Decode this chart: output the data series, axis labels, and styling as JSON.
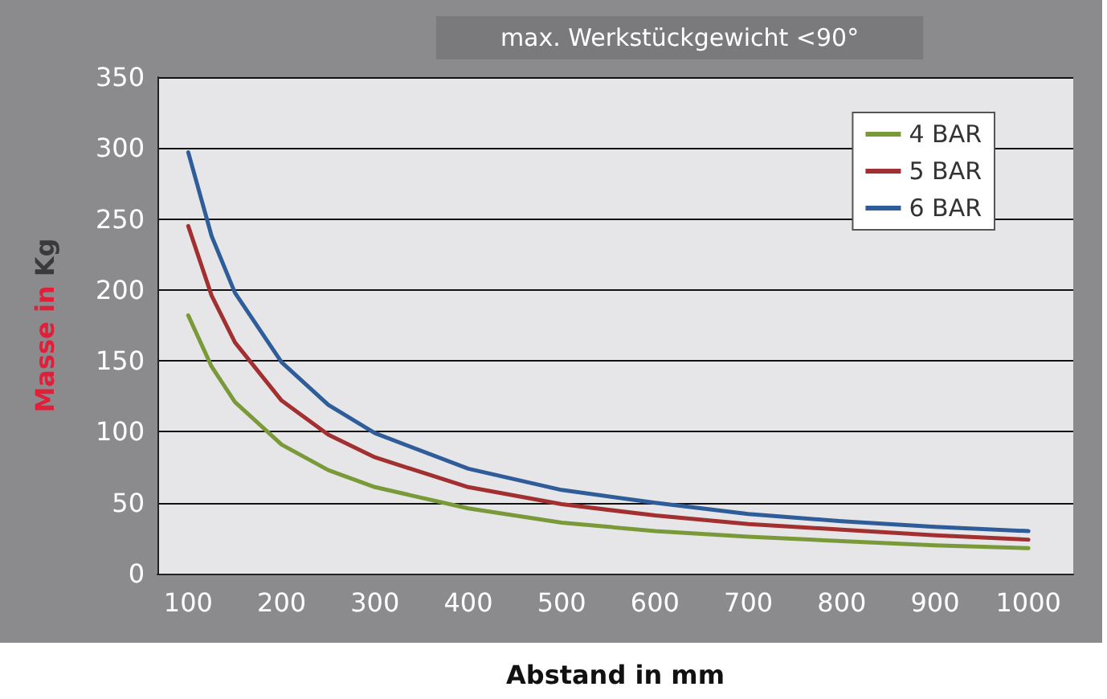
{
  "chart_data": {
    "type": "line",
    "title": "max. Werkstückgewicht <90°",
    "xlabel": "Abstand in mm",
    "ylabel": "Masse in Kg",
    "x": [
      100,
      125,
      150,
      200,
      250,
      300,
      400,
      500,
      600,
      700,
      800,
      900,
      1000
    ],
    "series": [
      {
        "name": "4 BAR",
        "color": "#7a9a3a",
        "values": [
          182,
          146,
          121,
          91,
          73,
          61,
          46,
          36,
          30,
          26,
          23,
          20,
          18
        ]
      },
      {
        "name": "5 BAR",
        "color": "#a23030",
        "values": [
          245,
          196,
          163,
          122,
          98,
          82,
          61,
          49,
          41,
          35,
          31,
          27,
          24
        ]
      },
      {
        "name": "6 BAR",
        "color": "#2f5d9a",
        "values": [
          297,
          238,
          198,
          149,
          119,
          99,
          74,
          59,
          50,
          42,
          37,
          33,
          30
        ]
      }
    ],
    "xlim": [
      67,
      1048
    ],
    "xticks": [
      100,
      200,
      300,
      400,
      500,
      600,
      700,
      800,
      900,
      1000
    ],
    "ylim": [
      0,
      350
    ],
    "yticks": [
      0,
      50,
      100,
      150,
      200,
      250,
      300,
      350
    ],
    "grid": "y",
    "legend": "top right",
    "marker": "none",
    "line_style": "solid"
  }
}
